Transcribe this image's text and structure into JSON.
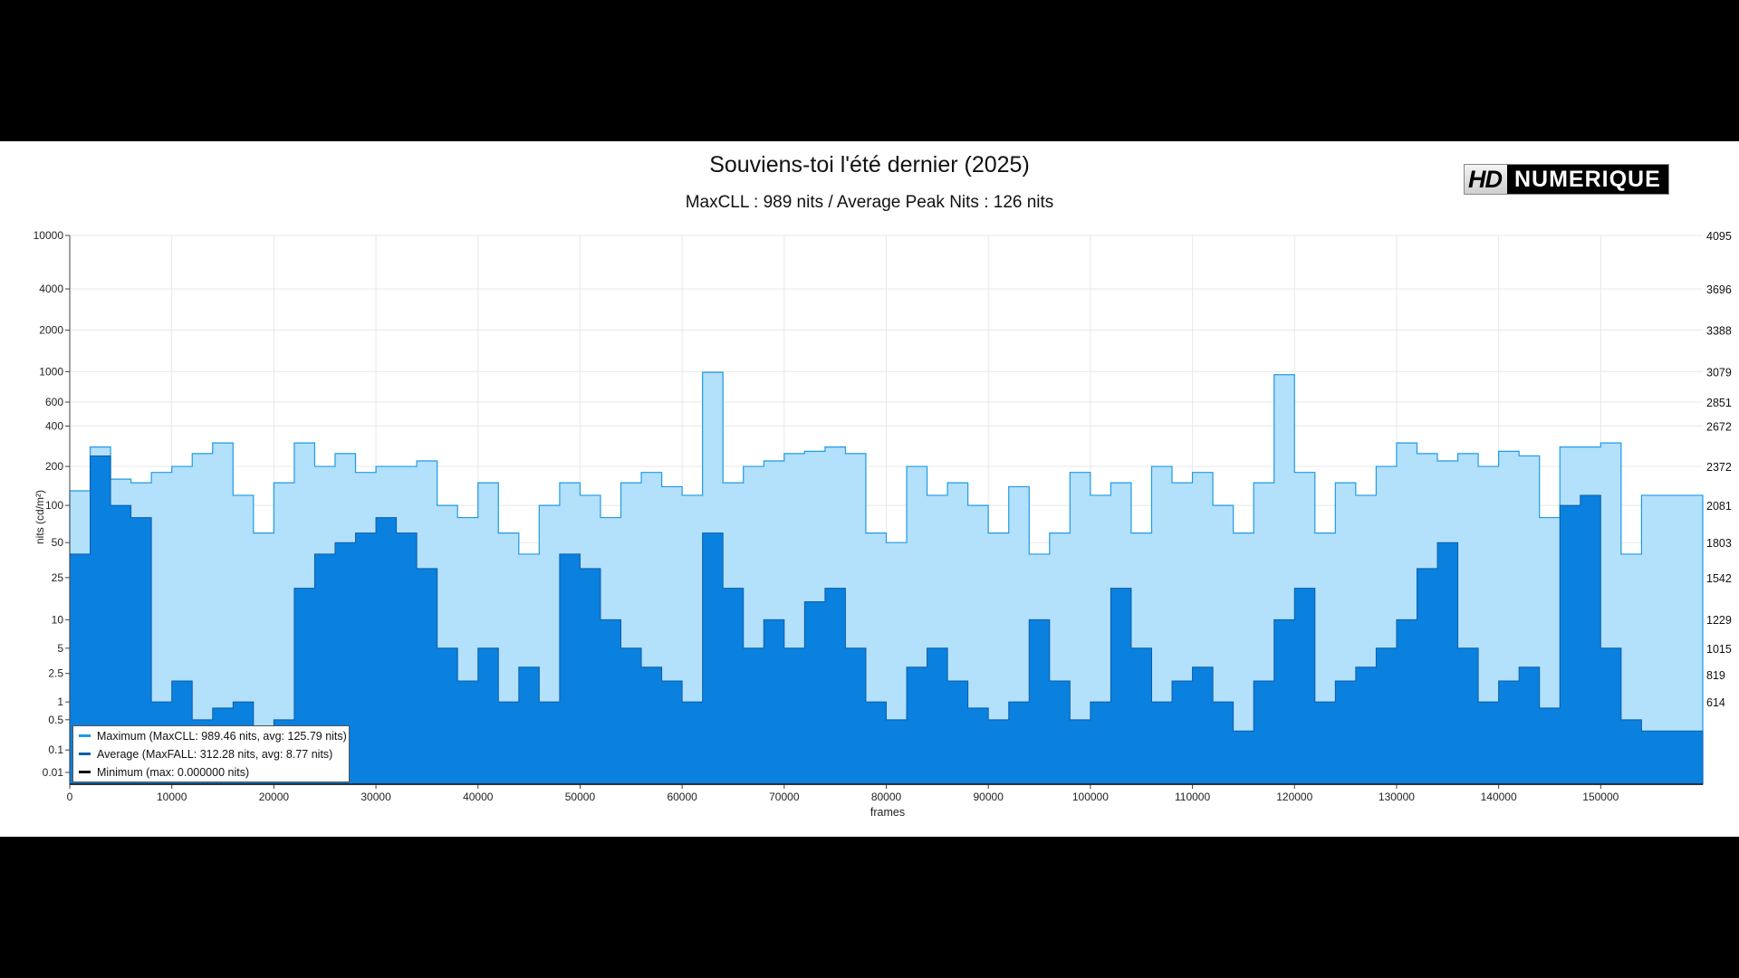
{
  "header": {
    "title": "Souviens-toi l'été dernier (2025)",
    "subtitle": "MaxCLL : 989 nits / Average Peak Nits : 126 nits",
    "logo_hd": "HD",
    "logo_text": "NUMERIQUE"
  },
  "chart_data": {
    "type": "area",
    "title": "Souviens-toi l'été dernier (2025)",
    "subtitle": "MaxCLL : 989 nits / Average Peak Nits : 126 nits",
    "xlabel": "frames",
    "ylabel": "nits (cd/m²)",
    "xlim": [
      0,
      160000
    ],
    "ylim": [
      0,
      10000
    ],
    "y_scale": "PQ (ST 2084)",
    "grid": true,
    "legend_position": "bottom-left",
    "x_ticks": [
      0,
      10000,
      20000,
      30000,
      40000,
      50000,
      60000,
      70000,
      80000,
      90000,
      100000,
      110000,
      120000,
      130000,
      140000,
      150000
    ],
    "y_ticks": [
      10000,
      4000,
      2000,
      1000,
      600,
      400,
      200,
      100,
      50,
      25,
      10,
      5,
      2.5,
      1,
      0.5,
      0.1,
      0.01
    ],
    "y_ticks_right": [
      4095,
      3696,
      3388,
      3079,
      2851,
      2672,
      2372,
      2081,
      1803,
      1542,
      1229,
      1015,
      819,
      614
    ],
    "x_step": 2000,
    "series": [
      {
        "name": "Maximum (MaxCLL: 989.46 nits, avg: 125.79 nits)",
        "color": "#1e9be6",
        "fill": "#b3e0fb",
        "values": [
          130,
          280,
          160,
          150,
          180,
          200,
          250,
          300,
          120,
          60,
          150,
          300,
          200,
          250,
          180,
          200,
          200,
          220,
          100,
          80,
          150,
          60,
          40,
          100,
          150,
          120,
          80,
          150,
          180,
          140,
          120,
          989,
          150,
          200,
          220,
          250,
          260,
          280,
          250,
          60,
          50,
          200,
          120,
          150,
          100,
          60,
          140,
          40,
          60,
          180,
          120,
          150,
          60,
          200,
          150,
          180,
          100,
          60,
          150,
          950,
          180,
          60,
          150,
          120,
          200,
          300,
          250,
          220,
          250,
          200,
          260,
          240,
          80,
          280,
          280,
          300,
          40,
          120,
          120,
          120
        ]
      },
      {
        "name": "Average (MaxFALL: 312.28 nits, avg: 8.77 nits)",
        "color": "#0b5fa8",
        "fill": "#0a80df",
        "values": [
          40,
          240,
          100,
          80,
          1,
          2,
          0.5,
          0.8,
          1,
          0.3,
          0.5,
          20,
          40,
          50,
          60,
          80,
          60,
          30,
          5,
          2,
          5,
          1,
          3,
          1,
          40,
          30,
          10,
          5,
          3,
          2,
          1,
          60,
          20,
          5,
          10,
          5,
          15,
          20,
          5,
          1,
          0.5,
          3,
          5,
          2,
          0.8,
          0.5,
          1,
          10,
          2,
          0.5,
          1,
          20,
          5,
          1,
          2,
          3,
          1,
          0.3,
          2,
          10,
          20,
          1,
          2,
          3,
          5,
          10,
          30,
          50,
          5,
          1,
          2,
          3,
          0.8,
          100,
          120,
          5,
          0.5,
          0.3,
          0.3,
          0.3
        ]
      },
      {
        "name": "Minimum (max: 0.000000 nits)",
        "color": "#111111",
        "values": [
          0
        ]
      }
    ]
  }
}
